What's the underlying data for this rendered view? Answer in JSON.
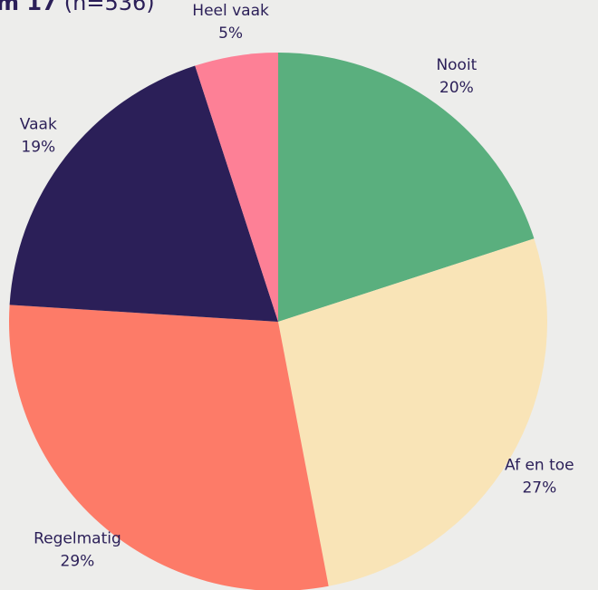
{
  "chart_data": {
    "type": "pie",
    "title": "m 17",
    "subtitle": "(n=536)",
    "categories": [
      "Nooit",
      "Af en toe",
      "Regelmatig",
      "Vaak",
      "Heel vaak"
    ],
    "values": [
      20,
      27,
      29,
      19,
      5
    ],
    "value_labels": [
      "20%",
      "27%",
      "29%",
      "19%",
      "5%"
    ],
    "colors": [
      "#5aaf7e",
      "#f9e4b7",
      "#fd7b68",
      "#2b1f58",
      "#fd8096"
    ]
  }
}
